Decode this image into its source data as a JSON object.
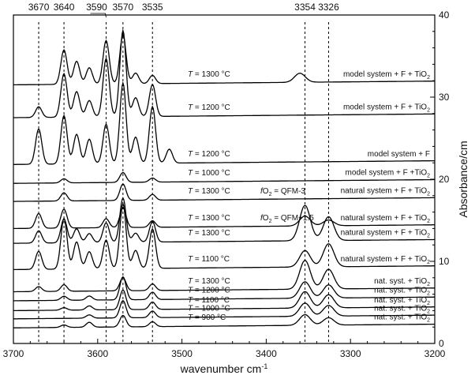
{
  "chart_data": {
    "type": "line",
    "x_axis": {
      "label": "wavenumber cm",
      "label_superscript": "-1",
      "min": 3700,
      "max": 3200,
      "reversed": true,
      "ticks": [
        "3700",
        "3600",
        "3500",
        "3400",
        "3300",
        "3200"
      ],
      "tick_values": [
        3700,
        3600,
        3500,
        3400,
        3300,
        3200
      ]
    },
    "y_axis": {
      "label": "Absorbance/cm",
      "position": "right",
      "min": 0,
      "max": 40,
      "ticks": [
        "0",
        "10",
        "20",
        "30",
        "40"
      ],
      "tick_values": [
        0,
        10,
        20,
        30,
        40
      ]
    },
    "grid": false,
    "reference_lines": [
      {
        "x": 3670,
        "label": "3670"
      },
      {
        "x": 3640,
        "label": "3640"
      },
      {
        "x": 3590,
        "label": "3590"
      },
      {
        "x": 3570,
        "label": "3570"
      },
      {
        "x": 3535,
        "label": "3535"
      },
      {
        "x": 3354,
        "label": "3354"
      },
      {
        "x": 3326,
        "label": "3326"
      }
    ],
    "series": [
      {
        "name": "model system + F + TiO",
        "sub": "2",
        "temp": "1300 °C",
        "baseline": 31.5,
        "peaks": [
          [
            3640,
            4.2
          ],
          [
            3625,
            2.8
          ],
          [
            3610,
            2.0
          ],
          [
            3590,
            5.3
          ],
          [
            3570,
            6.0
          ],
          [
            3555,
            1.3
          ],
          [
            3535,
            1.0
          ],
          [
            3360,
            1.1
          ]
        ]
      },
      {
        "name": "model system + F + TiO",
        "sub": "2",
        "temp": "1200 °C",
        "baseline": 27.5,
        "peaks": [
          [
            3670,
            1.3
          ],
          [
            3640,
            5.3
          ],
          [
            3625,
            3.1
          ],
          [
            3610,
            2.0
          ],
          [
            3590,
            7.1
          ],
          [
            3570,
            10.5
          ],
          [
            3555,
            2.3
          ],
          [
            3535,
            3.9
          ]
        ]
      },
      {
        "name": "model system + F",
        "temp": "1200 °C",
        "baseline": 21.8,
        "peaks": [
          [
            3670,
            4.3
          ],
          [
            3640,
            5.9
          ],
          [
            3625,
            3.6
          ],
          [
            3610,
            3.0
          ],
          [
            3590,
            4.8
          ],
          [
            3570,
            9.8
          ],
          [
            3555,
            3.2
          ],
          [
            3535,
            6.9
          ],
          [
            3515,
            1.7
          ]
        ]
      },
      {
        "name": "model system + F +TiO",
        "sub": "2",
        "temp": "1000 °C",
        "baseline": 19.5,
        "peaks": [
          [
            3640,
            0.5
          ],
          [
            3570,
            1.2
          ],
          [
            3535,
            0.5
          ]
        ]
      },
      {
        "name": "natural system + F + TiO",
        "sub": "2",
        "temp": "1300 °C",
        "fo2": "QFM-3",
        "baseline": 17.3,
        "peaks": [
          [
            3640,
            1.0
          ],
          [
            3570,
            2.0
          ],
          [
            3535,
            0.7
          ]
        ]
      },
      {
        "name": "natural system + F + TiO",
        "sub": "2",
        "temp": "1300 °C",
        "fo2": "QFM+1.5",
        "baseline": 14.0,
        "peaks": [
          [
            3670,
            1.8
          ],
          [
            3640,
            2.3
          ],
          [
            3590,
            1.1
          ],
          [
            3570,
            2.4
          ],
          [
            3535,
            0.8
          ],
          [
            3354,
            1.2
          ],
          [
            3326,
            0.7
          ]
        ]
      },
      {
        "name": "natural system + F + TiO",
        "sub": "2",
        "temp": "1300 °C",
        "baseline": 12.2,
        "peaks": [
          [
            3670,
            1.5
          ],
          [
            3640,
            2.9
          ],
          [
            3625,
            1.7
          ],
          [
            3610,
            1.1
          ],
          [
            3590,
            2.4
          ],
          [
            3570,
            5.4
          ],
          [
            3555,
            1.1
          ],
          [
            3535,
            2.5
          ],
          [
            3354,
            4.3
          ],
          [
            3326,
            2.9
          ]
        ]
      },
      {
        "name": "natural system + F + TiO",
        "sub": "2",
        "temp": "1100 °C",
        "baseline": 9.0,
        "peaks": [
          [
            3670,
            2.2
          ],
          [
            3640,
            6.2
          ],
          [
            3625,
            3.3
          ],
          [
            3610,
            2.1
          ],
          [
            3590,
            3.5
          ],
          [
            3570,
            7.9
          ],
          [
            3555,
            2.2
          ],
          [
            3535,
            4.8
          ],
          [
            3354,
            2.0
          ],
          [
            3326,
            2.8
          ]
        ]
      },
      {
        "name": "nat. syst. + TiO",
        "sub": "2",
        "temp": "1300 °C",
        "baseline": 6.3,
        "peaks": [
          [
            3670,
            0.6
          ],
          [
            3640,
            0.8
          ],
          [
            3570,
            1.6
          ],
          [
            3535,
            0.8
          ],
          [
            3354,
            3.5
          ],
          [
            3326,
            2.4
          ]
        ]
      },
      {
        "name": "nat. syst. + TiO",
        "sub": "2",
        "temp": "1200 °C",
        "baseline": 5.2,
        "peaks": [
          [
            3640,
            0.5
          ],
          [
            3610,
            0.5
          ],
          [
            3570,
            2.8
          ],
          [
            3535,
            0.9
          ],
          [
            3354,
            2.0
          ],
          [
            3326,
            1.6
          ]
        ]
      },
      {
        "name": "nat. syst. + TiO",
        "sub": "2",
        "temp": "1100 °C",
        "baseline": 4.0,
        "peaks": [
          [
            3640,
            0.3
          ],
          [
            3610,
            0.5
          ],
          [
            3570,
            2.4
          ],
          [
            3535,
            0.9
          ],
          [
            3354,
            2.0
          ],
          [
            3326,
            1.6
          ]
        ]
      },
      {
        "name": "nat. syst. + TiO",
        "sub": "2",
        "temp": "1000 °C",
        "baseline": 3.0,
        "peaks": [
          [
            3610,
            0.4
          ],
          [
            3570,
            2.1
          ],
          [
            3535,
            0.8
          ],
          [
            3354,
            1.6
          ],
          [
            3326,
            1.3
          ]
        ]
      },
      {
        "name": "nat. syst. + TiO",
        "sub": "2",
        "temp": "900 °C",
        "baseline": 1.9,
        "peaks": [
          [
            3640,
            0.3
          ],
          [
            3610,
            0.6
          ],
          [
            3570,
            1.4
          ],
          [
            3535,
            0.6
          ],
          [
            3354,
            1.3
          ],
          [
            3326,
            0.9
          ]
        ]
      }
    ]
  }
}
